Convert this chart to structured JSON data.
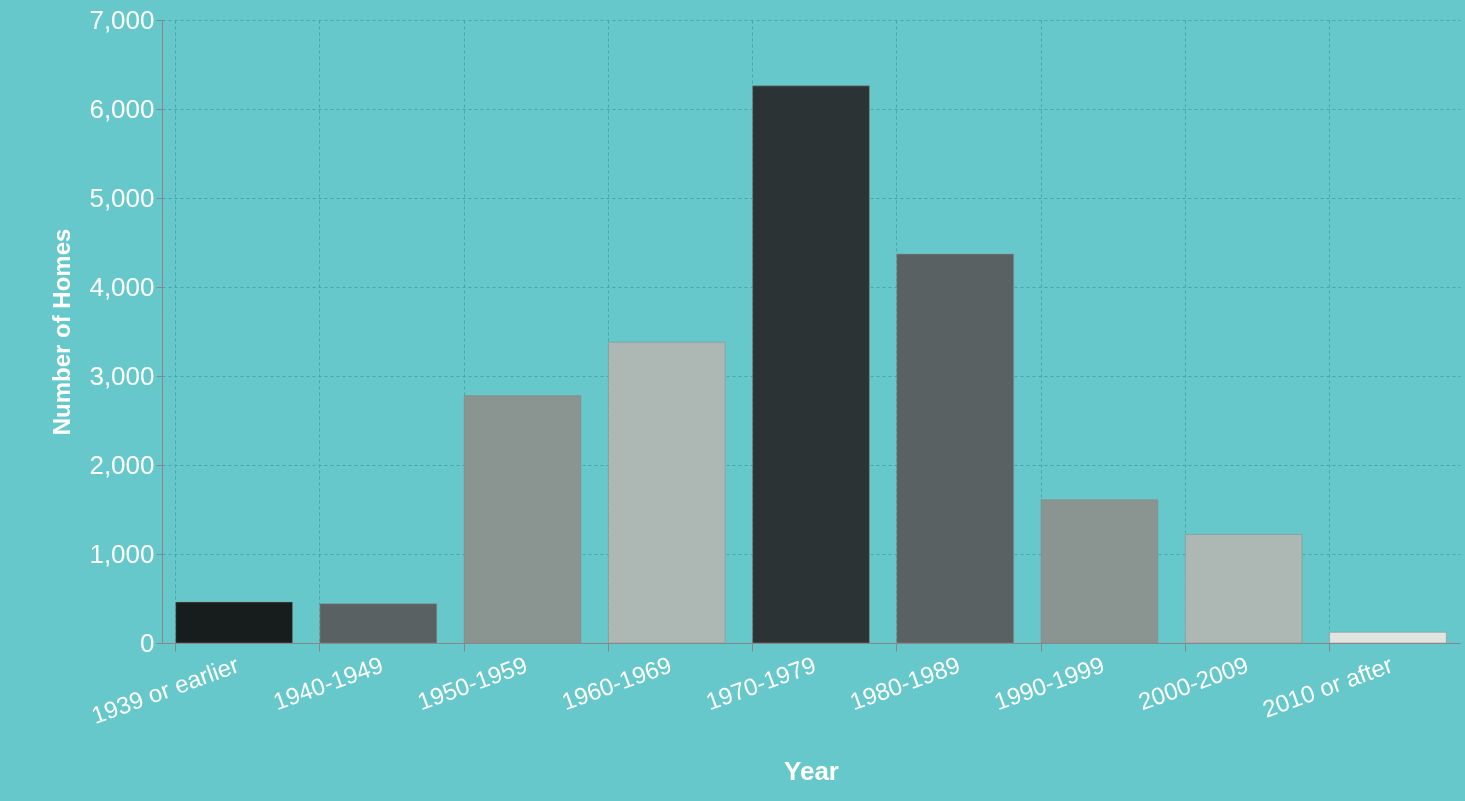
{
  "chart_data": {
    "type": "bar",
    "xlabel": "Year",
    "ylabel": "Number of Homes",
    "categories": [
      "1939 or earlier",
      "1940-1949",
      "1950-1959",
      "1960-1969",
      "1970-1979",
      "1980-1989",
      "1990-1999",
      "2000-2009",
      "2010 or after"
    ],
    "values": [
      460,
      440,
      2780,
      3380,
      6260,
      4370,
      1610,
      1220,
      120
    ],
    "colors": [
      "#171c1d",
      "#5a6163",
      "#8a9490",
      "#adb7b3",
      "#2c3335",
      "#5a6163",
      "#8a9490",
      "#adb7b3",
      "#e2e4df"
    ],
    "ylim": [
      0,
      7000
    ],
    "yticks": [
      0,
      {
        "value": 1000,
        "label": "1,000"
      },
      {
        "value": 2000,
        "label": "2,000"
      },
      {
        "value": 3000,
        "label": "3,000"
      },
      {
        "value": 4000,
        "label": "4,000"
      },
      {
        "value": 5000,
        "label": "5,000"
      },
      {
        "value": 6000,
        "label": "6,000"
      },
      {
        "value": 7000,
        "label": "7,000"
      }
    ],
    "grid": true
  }
}
